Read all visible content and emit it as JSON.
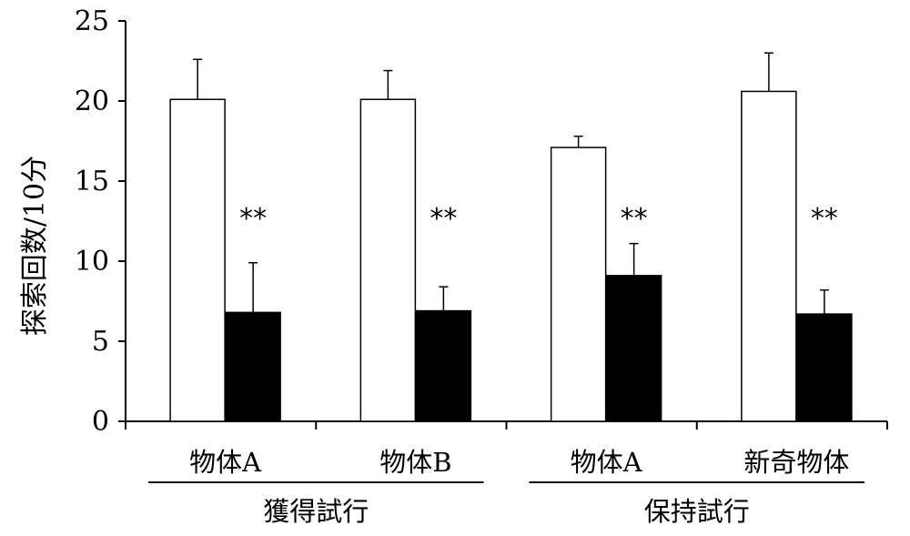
{
  "chart_data": {
    "type": "bar",
    "ylabel": "探索回数/10分",
    "ylim": [
      0,
      25
    ],
    "yticks": [
      "0",
      "5",
      "10",
      "15",
      "20",
      "25"
    ],
    "categories": [
      "物体A",
      "物体B",
      "物体A",
      "新奇物体"
    ],
    "groups": [
      {
        "label": "獲得試行",
        "categories": [
          0,
          1
        ]
      },
      {
        "label": "保持試行",
        "categories": [
          2,
          3
        ]
      }
    ],
    "series": [
      {
        "color": "#ffffff",
        "values": [
          20.1,
          20.1,
          17.1,
          20.6
        ],
        "errors": [
          2.5,
          1.8,
          0.7,
          2.4
        ]
      },
      {
        "color": "#000000",
        "values": [
          6.8,
          6.9,
          9.1,
          6.7
        ],
        "errors": [
          3.1,
          1.5,
          2.0,
          1.5
        ]
      }
    ],
    "significance": [
      "**",
      "**",
      "**",
      "**"
    ]
  }
}
